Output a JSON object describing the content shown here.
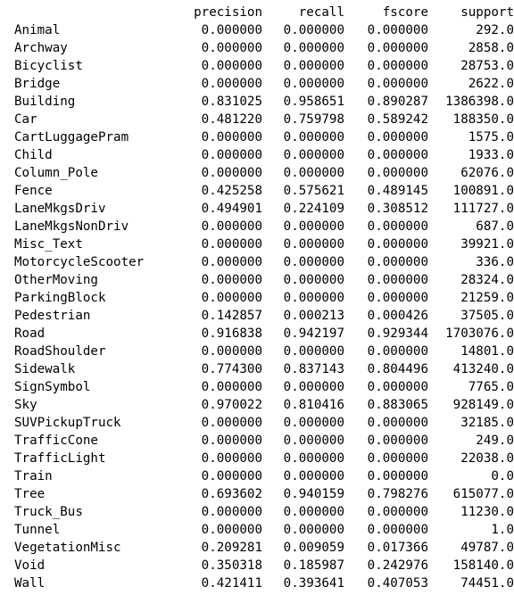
{
  "table": {
    "columns": [
      "precision",
      "recall",
      "fscore",
      "support"
    ],
    "rows": [
      {
        "label": "Animal",
        "values": [
          "0.000000",
          "0.000000",
          "0.000000",
          "292.0"
        ]
      },
      {
        "label": "Archway",
        "values": [
          "0.000000",
          "0.000000",
          "0.000000",
          "2858.0"
        ]
      },
      {
        "label": "Bicyclist",
        "values": [
          "0.000000",
          "0.000000",
          "0.000000",
          "28753.0"
        ]
      },
      {
        "label": "Bridge",
        "values": [
          "0.000000",
          "0.000000",
          "0.000000",
          "2622.0"
        ]
      },
      {
        "label": "Building",
        "values": [
          "0.831025",
          "0.958651",
          "0.890287",
          "1386398.0"
        ]
      },
      {
        "label": "Car",
        "values": [
          "0.481220",
          "0.759798",
          "0.589242",
          "188350.0"
        ]
      },
      {
        "label": "CartLuggagePram",
        "values": [
          "0.000000",
          "0.000000",
          "0.000000",
          "1575.0"
        ]
      },
      {
        "label": "Child",
        "values": [
          "0.000000",
          "0.000000",
          "0.000000",
          "1933.0"
        ]
      },
      {
        "label": "Column_Pole",
        "values": [
          "0.000000",
          "0.000000",
          "0.000000",
          "62076.0"
        ]
      },
      {
        "label": "Fence",
        "values": [
          "0.425258",
          "0.575621",
          "0.489145",
          "100891.0"
        ]
      },
      {
        "label": "LaneMkgsDriv",
        "values": [
          "0.494901",
          "0.224109",
          "0.308512",
          "111727.0"
        ]
      },
      {
        "label": "LaneMkgsNonDriv",
        "values": [
          "0.000000",
          "0.000000",
          "0.000000",
          "687.0"
        ]
      },
      {
        "label": "Misc_Text",
        "values": [
          "0.000000",
          "0.000000",
          "0.000000",
          "39921.0"
        ]
      },
      {
        "label": "MotorcycleScooter",
        "values": [
          "0.000000",
          "0.000000",
          "0.000000",
          "336.0"
        ]
      },
      {
        "label": "OtherMoving",
        "values": [
          "0.000000",
          "0.000000",
          "0.000000",
          "28324.0"
        ]
      },
      {
        "label": "ParkingBlock",
        "values": [
          "0.000000",
          "0.000000",
          "0.000000",
          "21259.0"
        ]
      },
      {
        "label": "Pedestrian",
        "values": [
          "0.142857",
          "0.000213",
          "0.000426",
          "37505.0"
        ]
      },
      {
        "label": "Road",
        "values": [
          "0.916838",
          "0.942197",
          "0.929344",
          "1703076.0"
        ]
      },
      {
        "label": "RoadShoulder",
        "values": [
          "0.000000",
          "0.000000",
          "0.000000",
          "14801.0"
        ]
      },
      {
        "label": "Sidewalk",
        "values": [
          "0.774300",
          "0.837143",
          "0.804496",
          "413240.0"
        ]
      },
      {
        "label": "SignSymbol",
        "values": [
          "0.000000",
          "0.000000",
          "0.000000",
          "7765.0"
        ]
      },
      {
        "label": "Sky",
        "values": [
          "0.970022",
          "0.810416",
          "0.883065",
          "928149.0"
        ]
      },
      {
        "label": "SUVPickupTruck",
        "values": [
          "0.000000",
          "0.000000",
          "0.000000",
          "32185.0"
        ]
      },
      {
        "label": "TrafficCone",
        "values": [
          "0.000000",
          "0.000000",
          "0.000000",
          "249.0"
        ]
      },
      {
        "label": "TrafficLight",
        "values": [
          "0.000000",
          "0.000000",
          "0.000000",
          "22038.0"
        ]
      },
      {
        "label": "Train",
        "values": [
          "0.000000",
          "0.000000",
          "0.000000",
          "0.0"
        ]
      },
      {
        "label": "Tree",
        "values": [
          "0.693602",
          "0.940159",
          "0.798276",
          "615077.0"
        ]
      },
      {
        "label": "Truck_Bus",
        "values": [
          "0.000000",
          "0.000000",
          "0.000000",
          "11230.0"
        ]
      },
      {
        "label": "Tunnel",
        "values": [
          "0.000000",
          "0.000000",
          "0.000000",
          "1.0"
        ]
      },
      {
        "label": "VegetationMisc",
        "values": [
          "0.209281",
          "0.009059",
          "0.017366",
          "49787.0"
        ]
      },
      {
        "label": "Void",
        "values": [
          "0.350318",
          "0.185987",
          "0.242976",
          "158140.0"
        ]
      },
      {
        "label": "Wall",
        "values": [
          "0.421411",
          "0.393641",
          "0.407053",
          "74451.0"
        ]
      }
    ]
  }
}
